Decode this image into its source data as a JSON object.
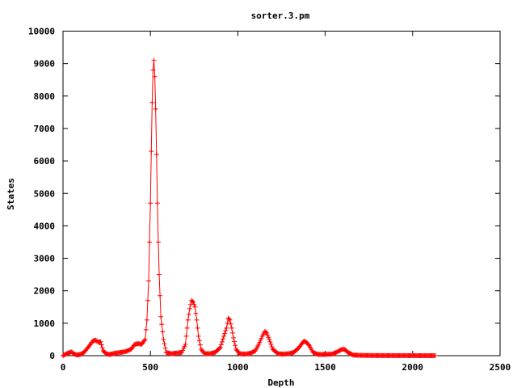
{
  "chart_data": {
    "type": "scatter",
    "title": "sorter.3.pm",
    "xlabel": "Depth",
    "ylabel": "States",
    "xlim": [
      0,
      2500
    ],
    "ylim": [
      0,
      10000
    ],
    "xticks": [
      0,
      500,
      1000,
      1500,
      2000,
      2500
    ],
    "yticks": [
      0,
      1000,
      2000,
      3000,
      4000,
      5000,
      6000,
      7000,
      8000,
      9000,
      10000
    ],
    "xtick_labels": [
      "0",
      "500",
      "1000",
      "1500",
      "2000",
      "2500"
    ],
    "ytick_labels": [
      "0",
      "1000",
      "2000",
      "3000",
      "4000",
      "5000",
      "6000",
      "7000",
      "8000",
      "9000",
      "10000"
    ],
    "grid": false,
    "legend": "none",
    "series": [
      {
        "color": "#ff0000",
        "marker": "plus",
        "x": [
          0,
          20,
          40,
          50,
          60,
          80,
          100,
          120,
          150,
          170,
          185,
          200,
          215,
          230,
          250,
          270,
          300,
          330,
          360,
          390,
          410,
          430,
          450,
          470,
          480,
          490,
          495,
          500,
          505,
          510,
          515,
          520,
          525,
          530,
          535,
          540,
          545,
          550,
          560,
          575,
          590,
          620,
          650,
          680,
          700,
          715,
          725,
          735,
          745,
          755,
          765,
          775,
          790,
          810,
          840,
          870,
          900,
          920,
          935,
          945,
          955,
          965,
          975,
          990,
          1010,
          1040,
          1070,
          1100,
          1120,
          1140,
          1155,
          1165,
          1180,
          1200,
          1230,
          1260,
          1290,
          1320,
          1350,
          1370,
          1380,
          1395,
          1410,
          1430,
          1460,
          1500,
          1540,
          1570,
          1590,
          1600,
          1615,
          1630,
          1660,
          1700,
          1760,
          1850,
          1950,
          2050,
          2130
        ],
        "y": [
          0,
          60,
          100,
          120,
          60,
          20,
          40,
          100,
          300,
          450,
          480,
          420,
          430,
          150,
          50,
          40,
          80,
          100,
          130,
          200,
          350,
          370,
          350,
          500,
          1100,
          2300,
          3500,
          4700,
          6300,
          7800,
          8800,
          9100,
          8600,
          7600,
          6200,
          4700,
          3500,
          2500,
          1200,
          500,
          100,
          60,
          80,
          100,
          350,
          1100,
          1450,
          1700,
          1650,
          1500,
          1100,
          600,
          200,
          60,
          60,
          100,
          250,
          600,
          850,
          1150,
          1100,
          850,
          550,
          200,
          60,
          50,
          70,
          150,
          350,
          600,
          750,
          700,
          500,
          200,
          60,
          50,
          60,
          100,
          250,
          400,
          450,
          400,
          300,
          100,
          40,
          40,
          50,
          120,
          180,
          200,
          180,
          100,
          20,
          10,
          5,
          3,
          2,
          1,
          0
        ]
      }
    ]
  }
}
